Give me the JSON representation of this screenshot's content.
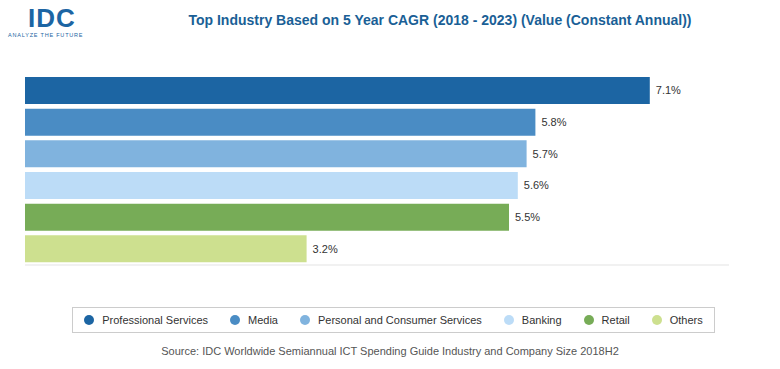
{
  "chart_data": {
    "type": "bar",
    "orientation": "horizontal",
    "title": "Top Industry Based on 5 Year CAGR (2018 - 2023) (Value (Constant Annual))",
    "logo": "IDC",
    "logo_tagline": "ANALYZE THE FUTURE",
    "source": "Source: IDC Worldwide Semiannual ICT Spending Guide Industry and Company Size 2018H2",
    "categories": [
      "Professional Services",
      "Media",
      "Personal and Consumer Services",
      "Banking",
      "Retail",
      "Others"
    ],
    "values": [
      7.1,
      5.8,
      5.7,
      5.6,
      5.5,
      3.2
    ],
    "value_labels": [
      "7.1%",
      "5.8%",
      "5.7%",
      "5.6%",
      "5.5%",
      "3.2%"
    ],
    "colors": [
      "#1c65a3",
      "#4a8cc4",
      "#80b3de",
      "#bcdcf7",
      "#77ac57",
      "#cde08f"
    ],
    "xlim": [
      0,
      8
    ],
    "data_labels": true,
    "tick_labels": false,
    "legend": "bottom"
  }
}
